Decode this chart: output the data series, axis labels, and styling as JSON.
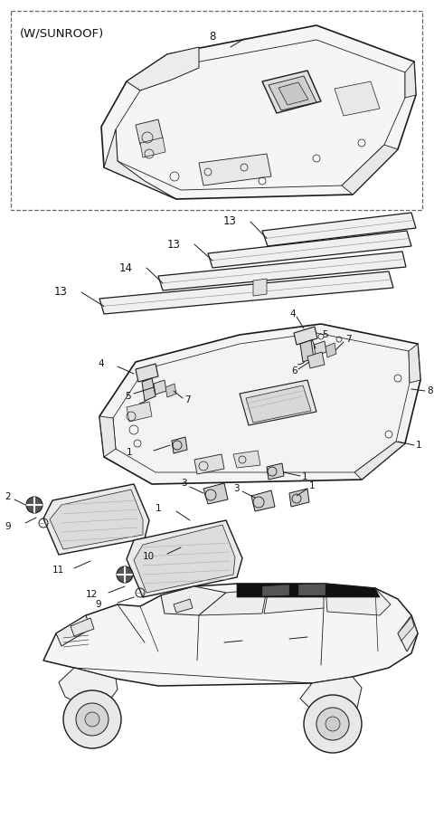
{
  "bg_color": "#ffffff",
  "line_color": "#1a1a1a",
  "dashed_box_label": "(W/SUNROOF)",
  "fig_width": 4.8,
  "fig_height": 9.25,
  "dpi": 100,
  "label_fontsize": 8.5,
  "label_fontsize_sm": 7.5
}
